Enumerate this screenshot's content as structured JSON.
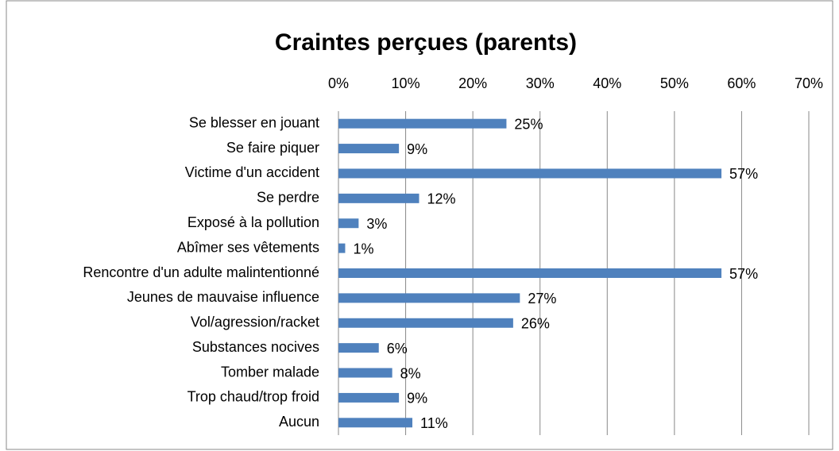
{
  "chart_data": {
    "type": "bar",
    "orientation": "horizontal",
    "title": "Craintes perçues (parents)",
    "categories": [
      "Se blesser en jouant",
      "Se faire piquer",
      "Victime d'un accident",
      "Se perdre",
      "Exposé à la pollution",
      "Abîmer ses vêtements",
      "Rencontre d'un adulte malintentionné",
      "Jeunes de mauvaise influence",
      "Vol/agression/racket",
      "Substances nocives",
      "Tomber malade",
      "Trop chaud/trop froid",
      "Aucun"
    ],
    "values": [
      25,
      9,
      57,
      12,
      3,
      1,
      57,
      27,
      26,
      6,
      8,
      9,
      11
    ],
    "value_labels": [
      "25%",
      "9%",
      "57%",
      "12%",
      "3%",
      "1%",
      "57%",
      "27%",
      "26%",
      "6%",
      "8%",
      "9%",
      "11%"
    ],
    "color": "#4f81bd",
    "xlim": [
      0,
      70
    ],
    "xticks": [
      {
        "value": 0,
        "label": "0%"
      },
      {
        "value": 10,
        "label": "10%"
      },
      {
        "value": 20,
        "label": "20%"
      },
      {
        "value": 30,
        "label": "30%"
      },
      {
        "value": 40,
        "label": "40%"
      },
      {
        "value": 50,
        "label": "50%"
      },
      {
        "value": 60,
        "label": "60%"
      },
      {
        "value": 70,
        "label": "70%"
      }
    ],
    "grid": true
  }
}
